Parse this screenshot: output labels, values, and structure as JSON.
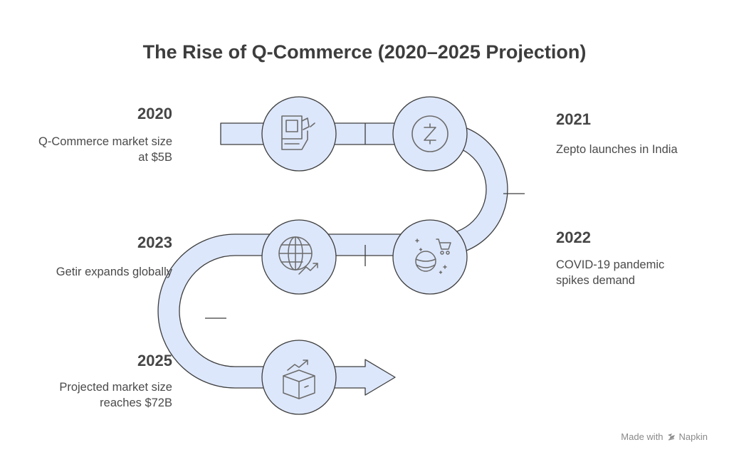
{
  "title": "The Rise of Q-Commerce (2020–2025 Projection)",
  "milestones": [
    {
      "year": "2020",
      "line1": "Q-Commerce market size",
      "line2": "at $5B",
      "icon": "pos-register-icon"
    },
    {
      "year": "2021",
      "line1": "Zepto launches in India",
      "line2": "",
      "icon": "zepto-coin-icon"
    },
    {
      "year": "2022",
      "line1": "COVID-19 pandemic",
      "line2": "spikes demand",
      "icon": "masked-face-cart-icon"
    },
    {
      "year": "2023",
      "line1": "Getir expands globally",
      "line2": "",
      "icon": "globe-growth-icon"
    },
    {
      "year": "2025",
      "line1": "Projected market size",
      "line2": "reaches $72B",
      "icon": "box-growth-icon"
    }
  ],
  "footer": {
    "made_with": "Made with",
    "brand": "Napkin"
  },
  "colors": {
    "fill": "#dde7fb",
    "stroke": "#3d3d3d",
    "icon": "#6b6b6b"
  }
}
